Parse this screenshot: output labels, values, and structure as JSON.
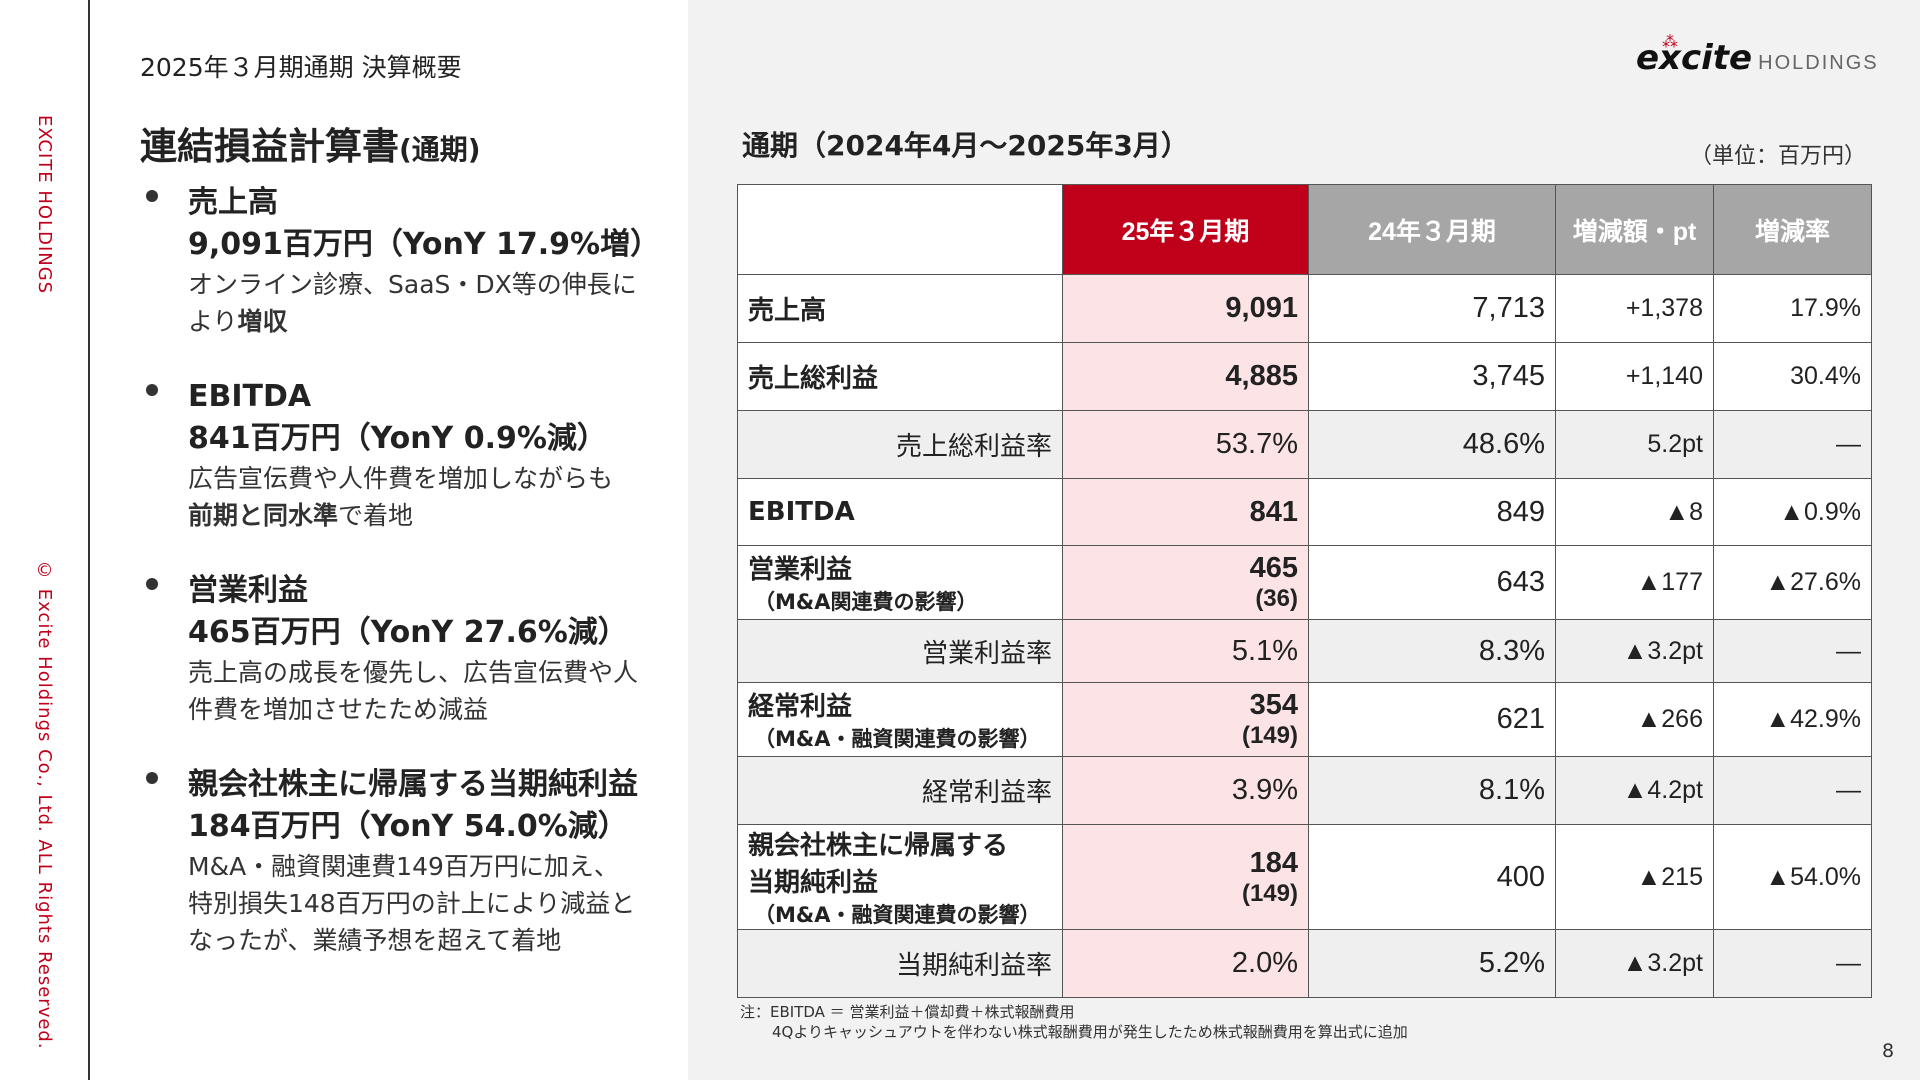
{
  "side": {
    "company": "EXCITE HOLDINGS",
    "copyright": "© Excite Holdings Co., Ltd. ALL Rights Reserved."
  },
  "header": {
    "kicker": "2025年３月期通期 決算概要",
    "title": "連結損益計算書",
    "title_suffix": "(通期)"
  },
  "logo": {
    "brand": "excite",
    "suffix": "HOLDINGS"
  },
  "bullets": [
    {
      "title": "売上高",
      "value": "9,091百万円（YonY 17.9%増）",
      "desc1": "オンライン診療、SaaS・DX等の伸長に",
      "desc2_plain": "より",
      "desc2_bold": "増収",
      "desc2_tail": ""
    },
    {
      "title": "EBITDA",
      "value": "841百万円（YonY 0.9%減）",
      "desc1": "広告宣伝費や人件費を増加しながらも",
      "desc2_plain": "",
      "desc2_bold": "前期と同水準",
      "desc2_tail": "で着地"
    },
    {
      "title": "営業利益",
      "value": "465百万円（YonY 27.6%減）",
      "desc1": "売上高の成長を優先し、広告宣伝費や人",
      "desc2_plain": "件費を増加させたため減益",
      "desc2_bold": "",
      "desc2_tail": ""
    },
    {
      "title": "親会社株主に帰属する当期純利益",
      "value": "184百万円（YonY 54.0%減）",
      "desc1": "M&A・融資関連費149百万円に加え、",
      "desc2_plain": "特別損失148百万円の計上により減益と",
      "desc2_bold": "",
      "desc2_tail": "",
      "desc3": "なったが、業績予想を超えて着地"
    }
  ],
  "panel": {
    "title": "通期（2024年4月～2025年3月）",
    "unit": "（単位：百万円）"
  },
  "table": {
    "headers": [
      "",
      "25年３月期",
      "24年３月期",
      "増減額・pt",
      "増減率"
    ],
    "rows": [
      {
        "label": "売上高",
        "sub": "",
        "cur": "9,091",
        "cur_sub": "",
        "prev": "7,713",
        "diff": "+1,378",
        "rate": "17.9%"
      },
      {
        "label": "売上総利益",
        "sub": "",
        "cur": "4,885",
        "cur_sub": "",
        "prev": "3,745",
        "diff": "+1,140",
        "rate": "30.4%"
      },
      {
        "label": "売上総利益率",
        "cur": "53.7%",
        "prev": "48.6%",
        "diff": "5.2pt",
        "rate": "―"
      },
      {
        "label": "EBITDA",
        "sub": "",
        "cur": "841",
        "cur_sub": "",
        "prev": "849",
        "diff": "▲8",
        "rate": "▲0.9%"
      },
      {
        "label": "営業利益",
        "sub": "（M&A関連費の影響）",
        "cur": "465",
        "cur_sub": "(36)",
        "prev": "643",
        "diff": "▲177",
        "rate": "▲27.6%"
      },
      {
        "label": "営業利益率",
        "cur": "5.1%",
        "prev": "8.3%",
        "diff": "▲3.2pt",
        "rate": "―"
      },
      {
        "label": "経常利益",
        "sub": "（M&A・融資関連費の影響）",
        "cur": "354",
        "cur_sub": "(149)",
        "prev": "621",
        "diff": "▲266",
        "rate": "▲42.9%"
      },
      {
        "label": "経常利益率",
        "cur": "3.9%",
        "prev": "8.1%",
        "diff": "▲4.2pt",
        "rate": "―"
      },
      {
        "label": "親会社株主に帰属する",
        "label2": "当期純利益",
        "sub": "（M&A・融資関連費の影響）",
        "cur": "184",
        "cur_sub": "(149)",
        "prev": "400",
        "diff": "▲215",
        "rate": "▲54.0%"
      },
      {
        "label": "当期純利益率",
        "cur": "2.0%",
        "prev": "5.2%",
        "diff": "▲3.2pt",
        "rate": "―"
      }
    ]
  },
  "notes": {
    "line1": "注：EBITDA ＝ 営業利益＋償却費＋株式報酬費用",
    "line2": "4Qよりキャッシュアウトを伴わない株式報酬費用が発生したため株式報酬費用を算出式に追加"
  },
  "page_number": "8",
  "colors": {
    "accent": "#c0001a",
    "highlight": "#fce4e6",
    "header_gray": "#a6a6a6"
  }
}
